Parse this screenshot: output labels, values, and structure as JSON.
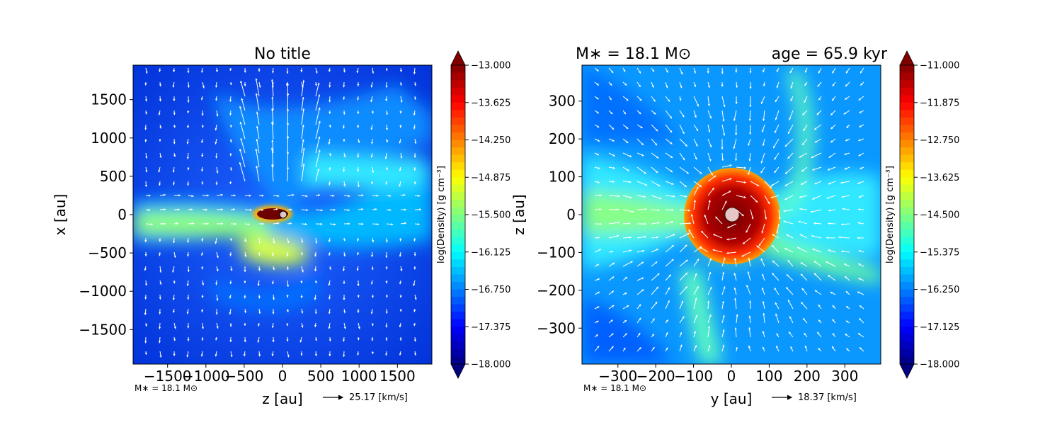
{
  "chart_data": [
    {
      "type": "heatmap",
      "title": "No title",
      "xlabel": "z [au]",
      "ylabel": "x [au]",
      "xlim": [
        -1950,
        1950
      ],
      "ylim": [
        -1950,
        1950
      ],
      "x_ticks": [
        -1500,
        -1000,
        -500,
        0,
        500,
        1000,
        1500
      ],
      "x_tick_labels": [
        "−1500",
        "−1000",
        "−500",
        "0",
        "500",
        "1000",
        "1500"
      ],
      "y_ticks": [
        1500,
        1000,
        500,
        0,
        -500,
        -1000,
        -1500
      ],
      "y_tick_labels": [
        "1500",
        "1000",
        "500",
        "0",
        "−500",
        "−1000",
        "−1500"
      ],
      "colormap": "jet",
      "colorbar": {
        "label": "log(Density) [g cm⁻³]",
        "range": [
          -18.0,
          -13.0
        ],
        "ticks": [
          -13.0,
          -13.625,
          -14.25,
          -14.875,
          -15.5,
          -16.125,
          -16.75,
          -17.375,
          -18.0
        ],
        "tick_labels": [
          "−13.000",
          "−13.625",
          "−14.250",
          "−14.875",
          "−15.500",
          "−16.125",
          "−16.750",
          "−17.375",
          "−18.000"
        ]
      },
      "footnote": "M∗ = 18.1 M⊙",
      "velocity_key": "25.17 [km/s]"
    },
    {
      "type": "heatmap",
      "title": "M∗ = 18.1 M⊙",
      "title_right": "age = 65.9 kyr",
      "xlabel": "y [au]",
      "ylabel": "z [au]",
      "xlim": [
        -395,
        395
      ],
      "ylim": [
        -395,
        395
      ],
      "x_ticks": [
        -300,
        -200,
        -100,
        0,
        100,
        200,
        300
      ],
      "x_tick_labels": [
        "−300",
        "−200",
        "−100",
        "0",
        "100",
        "200",
        "300"
      ],
      "y_ticks": [
        300,
        200,
        100,
        0,
        -100,
        -200,
        -300
      ],
      "y_tick_labels": [
        "300",
        "200",
        "100",
        "0",
        "−100",
        "−200",
        "−300"
      ],
      "colormap": "jet",
      "colorbar": {
        "label": "log(Density) [g cm⁻³]",
        "range": [
          -18.0,
          -11.0
        ],
        "ticks": [
          -11.0,
          -11.875,
          -12.75,
          -13.625,
          -14.5,
          -15.375,
          -16.25,
          -17.125,
          -18.0
        ],
        "tick_labels": [
          "−11.000",
          "−11.875",
          "−12.750",
          "−13.625",
          "−14.500",
          "−15.375",
          "−16.250",
          "−17.125",
          "−18.000"
        ]
      },
      "footnote": "M∗ = 18.1 M⊙",
      "velocity_key": "18.37 [km/s]"
    }
  ]
}
